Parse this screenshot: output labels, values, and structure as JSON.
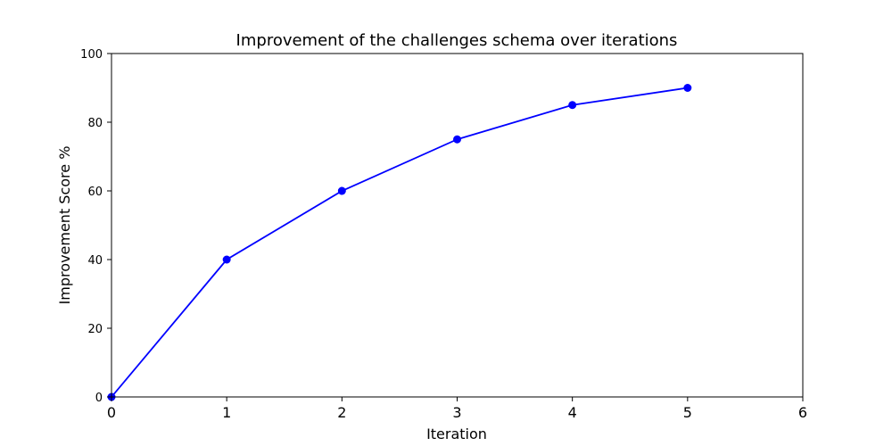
{
  "chart_data": {
    "type": "line",
    "title": "Improvement of the challenges schema over iterations",
    "xlabel": "Iteration",
    "ylabel": "Improvement Score %",
    "xlim": [
      0,
      6
    ],
    "ylim": [
      0,
      100
    ],
    "xticks": [
      "0",
      "1",
      "2",
      "3",
      "4",
      "5",
      "6"
    ],
    "yticks": [
      "0",
      "20",
      "40",
      "60",
      "80",
      "100"
    ],
    "grid": false,
    "series": [
      {
        "x": [
          0,
          1,
          2,
          3,
          4,
          5
        ],
        "values": [
          0,
          40,
          60,
          75,
          85,
          90
        ],
        "color": "#0000ff",
        "marker": "circle"
      }
    ]
  }
}
